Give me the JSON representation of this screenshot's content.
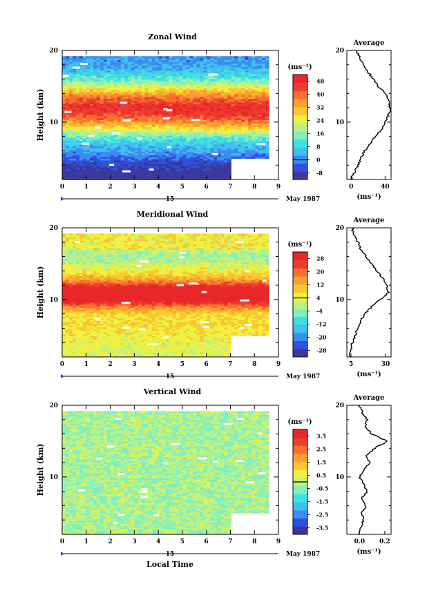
{
  "figure": {
    "xlabel": "Local Time",
    "date_day": "15",
    "date_month": "May 1987",
    "colorbar_unit": "(ms⁻¹)",
    "avg_title": "Average",
    "avg_unit": "(ms⁻¹)"
  },
  "chart_data": [
    {
      "type": "heatmap",
      "title": "Zonal Wind",
      "xlabel": "Local Time",
      "ylabel": "Height (km)",
      "xlim": [
        0,
        9
      ],
      "ylim": [
        2,
        20
      ],
      "x_ticks": [
        "0",
        "1",
        "2",
        "3",
        "4",
        "5",
        "6",
        "7",
        "8",
        "9"
      ],
      "y_ticks": [
        "10",
        "20"
      ],
      "x_data_end": 8.6,
      "colorbar": {
        "unit": "(ms⁻¹)",
        "ticks": [
          "48",
          "40",
          "32",
          "24",
          "16",
          "8",
          "0",
          "-8"
        ],
        "range": [
          -12,
          52
        ],
        "colors": [
          "#3a3a9e",
          "#3050e0",
          "#3c8cf0",
          "#40c0f0",
          "#40e0e0",
          "#80f0c0",
          "#c0f080",
          "#f0f040",
          "#f8c830",
          "#f8a030",
          "#f87030",
          "#f03c30",
          "#e82828"
        ]
      },
      "profile": {
        "title": "Average",
        "xlabel": "(ms⁻¹)",
        "x_ticks": [
          "0",
          "40"
        ],
        "xlim": [
          -5,
          47
        ],
        "heights": [
          2,
          3,
          4,
          5,
          6,
          7,
          8,
          9,
          10,
          11,
          12,
          13,
          14,
          15,
          16,
          17,
          18,
          19,
          20
        ],
        "values": [
          0,
          4,
          8,
          12,
          16,
          22,
          28,
          36,
          40,
          44,
          46,
          44,
          40,
          32,
          26,
          20,
          14,
          10,
          6
        ]
      }
    },
    {
      "type": "heatmap",
      "title": "Meridional Wind",
      "xlabel": "Local Time",
      "ylabel": "Height (km)",
      "xlim": [
        0,
        9
      ],
      "ylim": [
        2,
        20
      ],
      "x_ticks": [
        "0",
        "1",
        "2",
        "3",
        "4",
        "5",
        "6",
        "7",
        "8",
        "9"
      ],
      "y_ticks": [
        "10",
        "20"
      ],
      "x_data_end": 8.6,
      "colorbar": {
        "unit": "(ms⁻¹)",
        "ticks": [
          "28",
          "20",
          "12",
          "4",
          "-4",
          "-12",
          "-20",
          "-28"
        ],
        "range": [
          -32,
          32
        ],
        "colors": [
          "#3a3a9e",
          "#3050e0",
          "#3c8cf0",
          "#40c0f0",
          "#40e0e0",
          "#80f0c0",
          "#c0f080",
          "#f0f040",
          "#f8c830",
          "#f8a030",
          "#f87030",
          "#f03c30",
          "#e82828"
        ]
      },
      "profile": {
        "title": "Average",
        "xlabel": "(ms⁻¹)",
        "x_ticks": [
          "5",
          "30"
        ],
        "xlim": [
          2,
          34
        ],
        "heights": [
          2,
          3,
          4,
          5,
          6,
          7,
          8,
          9,
          10,
          11,
          12,
          13,
          14,
          15,
          16,
          17,
          18,
          19,
          20
        ],
        "values": [
          4,
          5,
          6,
          8,
          10,
          12,
          15,
          20,
          26,
          32,
          31,
          28,
          24,
          20,
          16,
          12,
          10,
          7,
          6
        ]
      }
    },
    {
      "type": "heatmap",
      "title": "Vertical Wind",
      "xlabel": "Local Time",
      "ylabel": "Height (km)",
      "xlim": [
        0,
        9
      ],
      "ylim": [
        2,
        20
      ],
      "x_ticks": [
        "0",
        "1",
        "2",
        "3",
        "4",
        "5",
        "6",
        "7",
        "8",
        "9"
      ],
      "y_ticks": [
        "10",
        "20"
      ],
      "x_data_end": 8.6,
      "colorbar": {
        "unit": "(ms⁻¹)",
        "ticks": [
          "3.5",
          "2.5",
          "1.5",
          "0.5",
          "-0.5",
          "-1.5",
          "-2.5",
          "-3.5"
        ],
        "range": [
          -4,
          4
        ],
        "colors": [
          "#3a3a9e",
          "#3050e0",
          "#3c8cf0",
          "#40c0f0",
          "#40e0e0",
          "#80f0c0",
          "#c0f080",
          "#f0f040",
          "#f8c830",
          "#f8a030",
          "#f87030",
          "#f03c30",
          "#e82828"
        ]
      },
      "profile": {
        "title": "Average",
        "xlabel": "(ms⁻¹)",
        "x_ticks": [
          "0.0",
          "0.2"
        ],
        "xlim": [
          -0.1,
          0.25
        ],
        "heights": [
          2,
          3,
          4,
          5,
          6,
          7,
          8,
          9,
          10,
          11,
          12,
          13,
          14,
          15,
          16,
          17,
          18,
          19,
          20
        ],
        "values": [
          0.0,
          0.01,
          0.03,
          0.02,
          0.05,
          0.02,
          0.06,
          0.03,
          0.0,
          0.04,
          0.08,
          0.05,
          0.12,
          0.22,
          0.1,
          0.04,
          0.06,
          0.02,
          0.0
        ]
      }
    }
  ]
}
